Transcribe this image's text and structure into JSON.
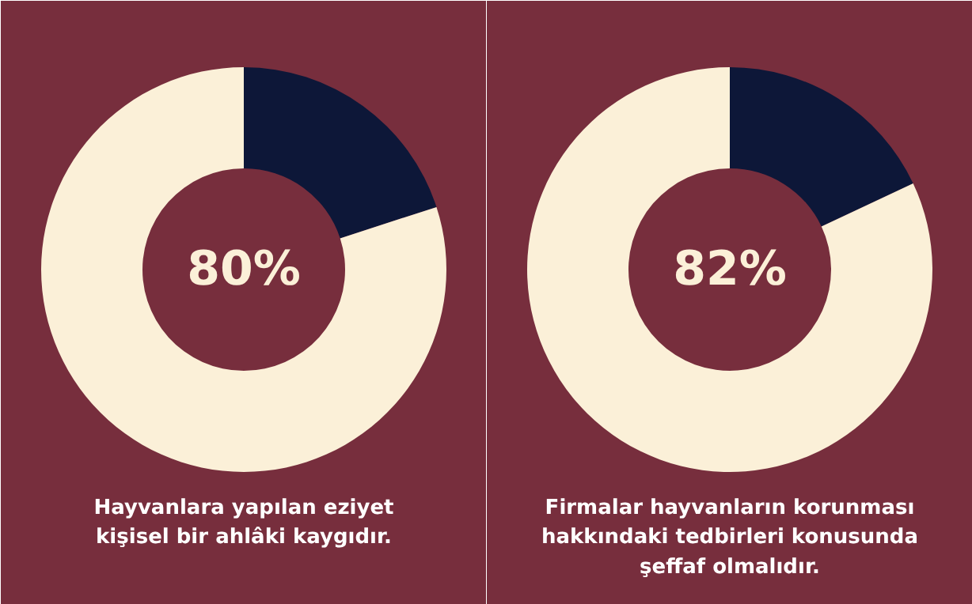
{
  "chart_data": [
    {
      "type": "donut",
      "title": "Hayvanlara yapılan eziyet\nkişisel bir ahlâki kaygıdır.",
      "categories": [
        null,
        null
      ],
      "values": [
        20,
        80
      ],
      "colors": [
        "#0d1738",
        "#fbf0d8"
      ],
      "annotations": [
        "80%"
      ]
    },
    {
      "type": "donut",
      "title": "Firmalar hayvanların korunması\nhakkındaki tedbirleri konusunda\nşeffaf olmalıdır.",
      "categories": [
        null,
        null
      ],
      "values": [
        18,
        82
      ],
      "colors": [
        "#0d1738",
        "#fbf0d8"
      ],
      "annotations": [
        "82%"
      ]
    }
  ]
}
